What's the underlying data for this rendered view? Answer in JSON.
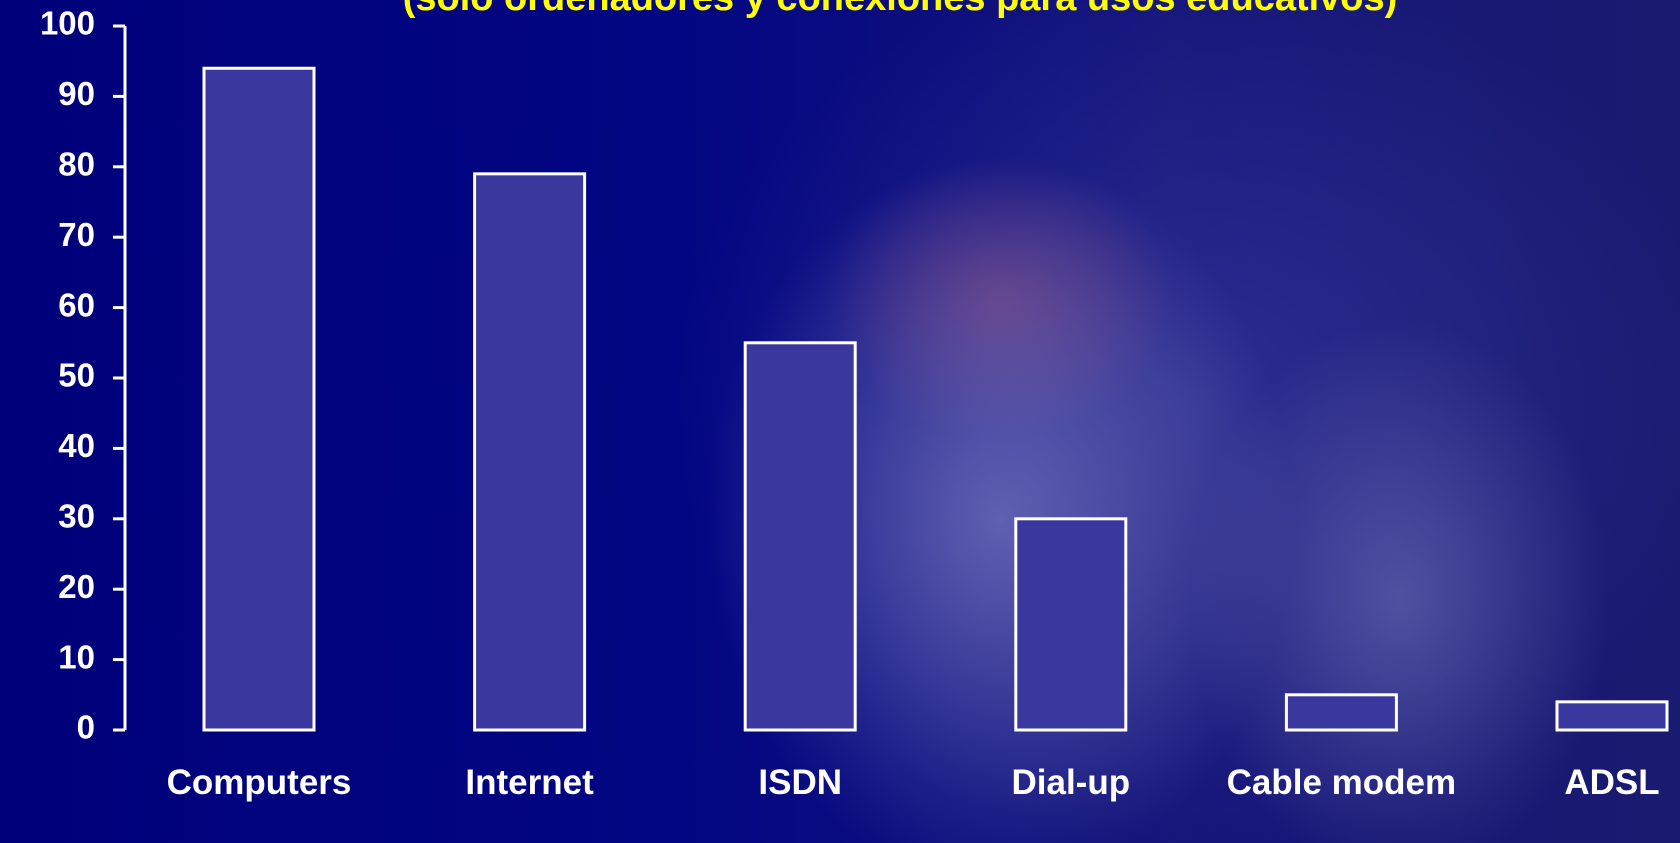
{
  "chart_data": {
    "type": "bar",
    "title": "(sólo ordenadores y conexiones para usos educativos)",
    "categories": [
      "Computers",
      "Internet",
      "ISDN",
      "Dial-up",
      "Cable modem",
      "ADSL"
    ],
    "values": [
      94,
      79,
      55,
      30,
      5,
      4
    ],
    "color": "#3a389e",
    "ylim": [
      0,
      100
    ],
    "yticks": [
      0,
      10,
      20,
      30,
      40,
      50,
      60,
      70,
      80,
      90,
      100
    ],
    "grid": false
  }
}
